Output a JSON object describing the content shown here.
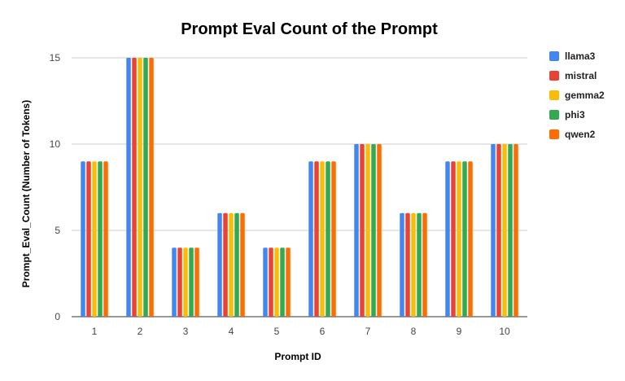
{
  "chart_data": {
    "type": "bar",
    "title": "Prompt Eval Count of the Prompt",
    "xlabel": "Prompt ID",
    "ylabel": "Prompt_Eval_Count (Number of Tokens)",
    "categories": [
      "1",
      "2",
      "3",
      "4",
      "5",
      "6",
      "7",
      "8",
      "9",
      "10"
    ],
    "ylim": [
      0,
      15
    ],
    "yticks": [
      "0",
      "5",
      "10",
      "15"
    ],
    "grid": true,
    "legend_position": "right",
    "series": [
      {
        "name": "llama3",
        "color": "#4285F4",
        "values": [
          9,
          15,
          4,
          6,
          4,
          9,
          10,
          6,
          9,
          10
        ]
      },
      {
        "name": "mistral",
        "color": "#EA4335",
        "values": [
          9,
          15,
          4,
          6,
          4,
          9,
          10,
          6,
          9,
          10
        ]
      },
      {
        "name": "gemma2",
        "color": "#FBBC04",
        "values": [
          9,
          15,
          4,
          6,
          4,
          9,
          10,
          6,
          9,
          10
        ]
      },
      {
        "name": "phi3",
        "color": "#34A853",
        "values": [
          9,
          15,
          4,
          6,
          4,
          9,
          10,
          6,
          9,
          10
        ]
      },
      {
        "name": "qwen2",
        "color": "#FF6D01",
        "values": [
          9,
          15,
          4,
          6,
          4,
          9,
          10,
          6,
          9,
          10
        ]
      }
    ]
  }
}
